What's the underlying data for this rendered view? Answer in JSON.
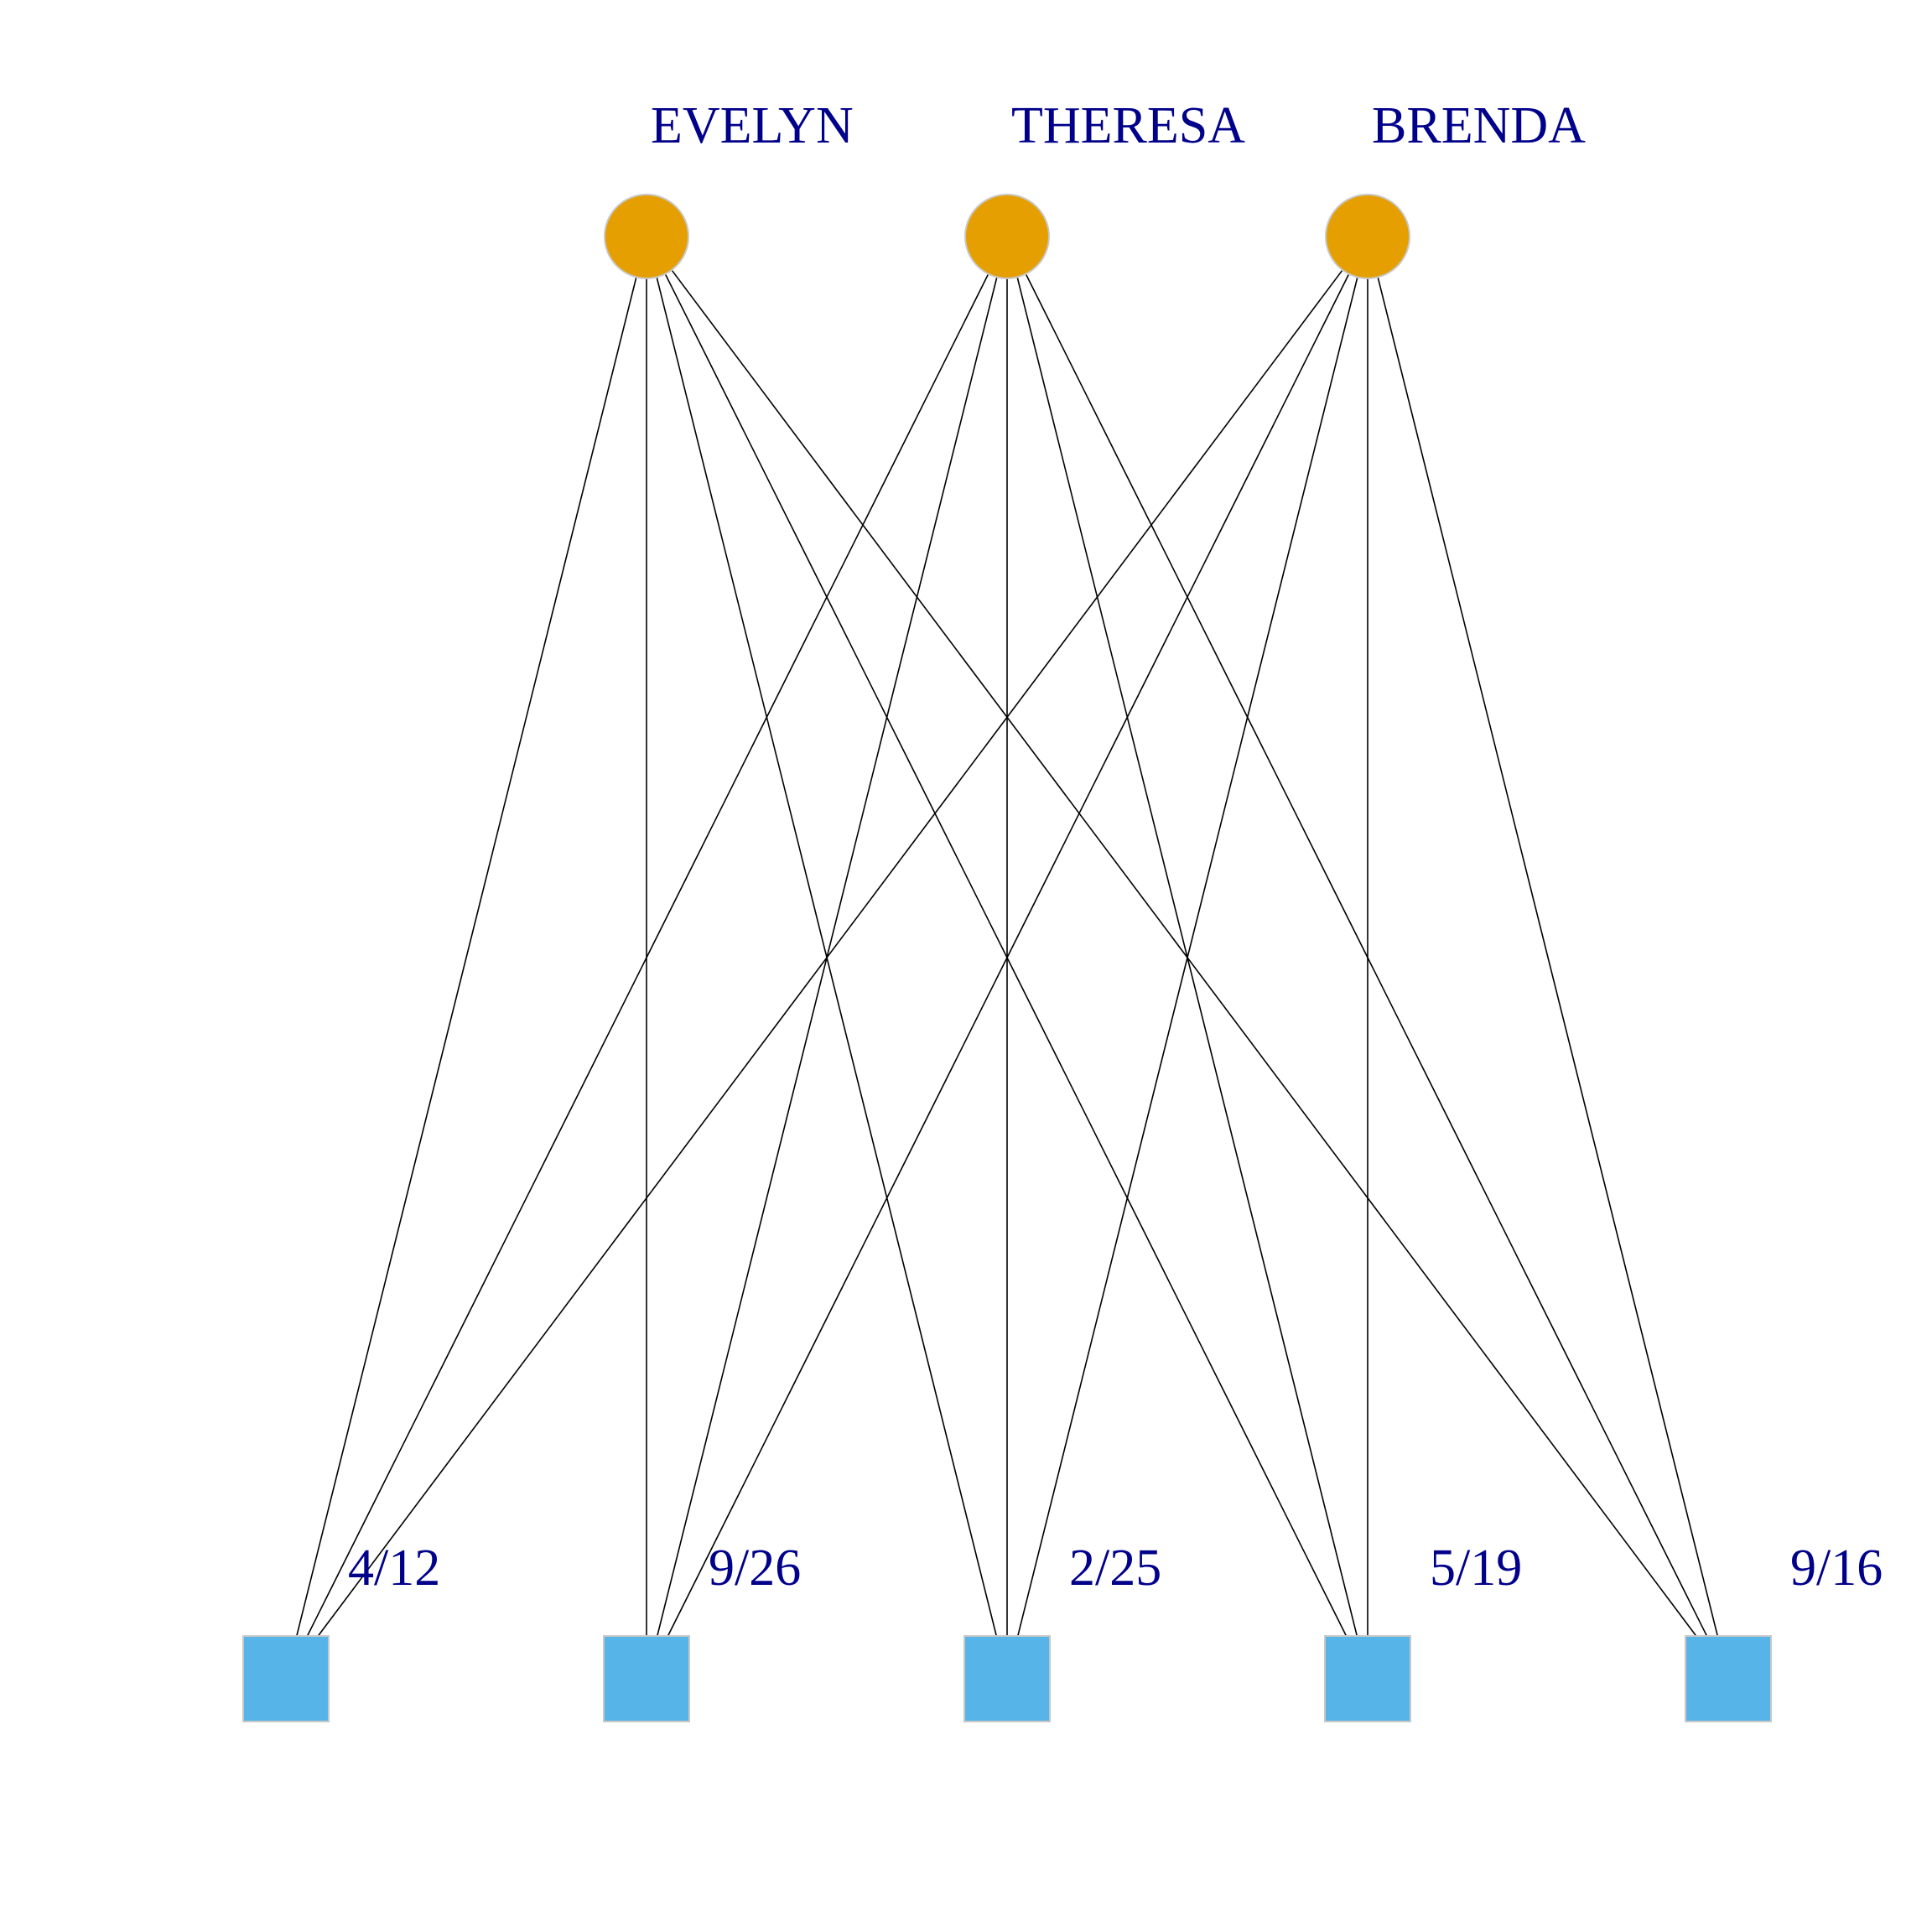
{
  "graph": {
    "type": "bipartite",
    "colors": {
      "top_node_fill": "#E69F00",
      "bottom_node_fill": "#56B4E9",
      "node_border": "#c8c8c8",
      "edge": "#000000",
      "label": "#00008B"
    },
    "top_nodes": [
      {
        "id": "EVELYN",
        "label": "EVELYN",
        "shape": "circle"
      },
      {
        "id": "THERESA",
        "label": "THERESA",
        "shape": "circle"
      },
      {
        "id": "BRENDA",
        "label": "BRENDA",
        "shape": "circle"
      }
    ],
    "bottom_nodes": [
      {
        "id": "4/12",
        "label": "4/12",
        "shape": "square"
      },
      {
        "id": "9/26",
        "label": "9/26",
        "shape": "square"
      },
      {
        "id": "2/25",
        "label": "2/25",
        "shape": "square"
      },
      {
        "id": "5/19",
        "label": "5/19",
        "shape": "square"
      },
      {
        "id": "9/16",
        "label": "9/16",
        "shape": "square"
      }
    ],
    "edges": [
      [
        "EVELYN",
        "4/12"
      ],
      [
        "EVELYN",
        "9/26"
      ],
      [
        "EVELYN",
        "2/25"
      ],
      [
        "EVELYN",
        "5/19"
      ],
      [
        "EVELYN",
        "9/16"
      ],
      [
        "THERESA",
        "4/12"
      ],
      [
        "THERESA",
        "9/26"
      ],
      [
        "THERESA",
        "2/25"
      ],
      [
        "THERESA",
        "5/19"
      ],
      [
        "THERESA",
        "9/16"
      ],
      [
        "BRENDA",
        "4/12"
      ],
      [
        "BRENDA",
        "9/26"
      ],
      [
        "BRENDA",
        "2/25"
      ],
      [
        "BRENDA",
        "5/19"
      ],
      [
        "BRENDA",
        "9/16"
      ]
    ]
  }
}
